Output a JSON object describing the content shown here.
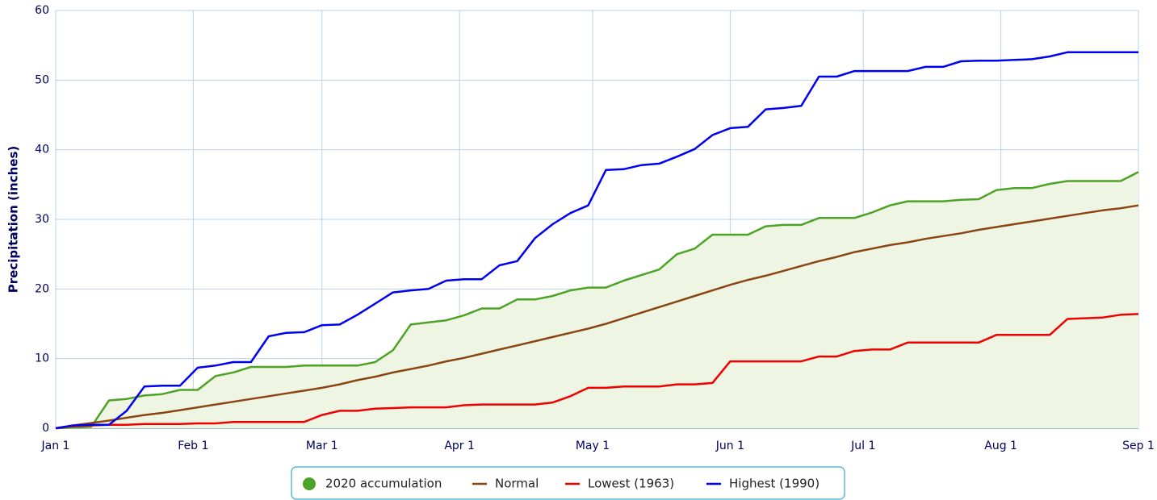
{
  "chart_data": {
    "type": "line",
    "y_label": "Precipitation (inches)",
    "x": [
      0,
      4,
      8,
      12,
      16,
      20,
      24,
      28,
      32,
      36,
      40,
      44,
      48,
      52,
      56,
      60,
      64,
      68,
      72,
      76,
      80,
      84,
      88,
      92,
      96,
      100,
      104,
      108,
      112,
      116,
      120,
      124,
      128,
      132,
      136,
      140,
      144,
      148,
      152,
      156,
      160,
      164,
      168,
      172,
      176,
      180,
      184,
      188,
      192,
      196,
      200,
      204,
      208,
      212,
      216,
      220,
      224,
      228,
      232,
      236,
      240,
      244
    ],
    "xlim": [
      0,
      244
    ],
    "xticks": [
      {
        "value": 0,
        "label": "Jan 1"
      },
      {
        "value": 31,
        "label": "Feb 1"
      },
      {
        "value": 60,
        "label": "Mar 1"
      },
      {
        "value": 91,
        "label": "Apr 1"
      },
      {
        "value": 121,
        "label": "May 1"
      },
      {
        "value": 152,
        "label": "Jun 1"
      },
      {
        "value": 182,
        "label": "Jul 1"
      },
      {
        "value": 213,
        "label": "Aug 1"
      },
      {
        "value": 244,
        "label": "Sep 1"
      }
    ],
    "ylim": [
      0,
      60
    ],
    "yticks": [
      0,
      10,
      20,
      30,
      40,
      50,
      60
    ],
    "grid": true,
    "series": [
      {
        "name": "2020 accumulation",
        "color": "#4ca325",
        "area_color": "#eef5e3",
        "marker": "circle",
        "values": [
          0,
          0.1,
          0.2,
          4.0,
          4.2,
          4.7,
          4.9,
          5.5,
          5.5,
          7.5,
          8.0,
          8.8,
          8.8,
          8.8,
          9.0,
          9.0,
          9.0,
          9.0,
          9.5,
          11.2,
          14.9,
          15.2,
          15.5,
          16.2,
          17.2,
          17.2,
          18.5,
          18.5,
          19.0,
          19.8,
          20.2,
          20.2,
          21.2,
          22.0,
          22.8,
          25.0,
          25.8,
          27.8,
          27.8,
          27.8,
          29.0,
          29.2,
          29.2,
          30.2,
          30.2,
          30.2,
          31.0,
          32.0,
          32.6,
          32.6,
          32.6,
          32.8,
          32.9,
          34.2,
          34.5,
          34.5,
          35.1,
          35.5,
          35.5,
          35.5,
          35.5,
          36.8
        ]
      },
      {
        "name": "Normal",
        "color": "#8b4513",
        "marker": "line",
        "values": [
          0,
          0.4,
          0.75,
          1.1,
          1.5,
          1.9,
          2.2,
          2.6,
          3.0,
          3.4,
          3.8,
          4.2,
          4.6,
          5.0,
          5.4,
          5.8,
          6.3,
          6.9,
          7.4,
          8.0,
          8.5,
          9.0,
          9.6,
          10.1,
          10.7,
          11.3,
          11.9,
          12.5,
          13.1,
          13.7,
          14.3,
          15.0,
          15.8,
          16.6,
          17.4,
          18.2,
          19.0,
          19.8,
          20.6,
          21.3,
          21.9,
          22.6,
          23.3,
          24.0,
          24.6,
          25.3,
          25.8,
          26.3,
          26.7,
          27.2,
          27.6,
          28.0,
          28.5,
          28.9,
          29.3,
          29.7,
          30.1,
          30.5,
          30.9,
          31.3,
          31.6,
          32.0
        ]
      },
      {
        "name": "Lowest (1963)",
        "color": "#f00000",
        "marker": "line",
        "values": [
          0,
          0.3,
          0.4,
          0.5,
          0.5,
          0.6,
          0.6,
          0.6,
          0.7,
          0.7,
          0.9,
          0.9,
          0.9,
          0.9,
          0.9,
          1.9,
          2.5,
          2.5,
          2.8,
          2.9,
          3.0,
          3.0,
          3.0,
          3.3,
          3.4,
          3.4,
          3.4,
          3.4,
          3.7,
          4.6,
          5.8,
          5.8,
          6.0,
          6.0,
          6.0,
          6.3,
          6.3,
          6.5,
          9.6,
          9.6,
          9.6,
          9.6,
          9.6,
          10.3,
          10.3,
          11.1,
          11.3,
          11.3,
          12.3,
          12.3,
          12.3,
          12.3,
          12.3,
          13.4,
          13.4,
          13.4,
          13.4,
          15.7,
          15.8,
          15.9,
          16.3,
          16.4
        ]
      },
      {
        "name": "Highest (1990)",
        "color": "#0000f0",
        "marker": "line",
        "values": [
          0,
          0.4,
          0.5,
          0.5,
          2.5,
          6.0,
          6.1,
          6.1,
          8.7,
          9.0,
          9.5,
          9.5,
          13.2,
          13.7,
          13.8,
          14.8,
          14.9,
          16.3,
          17.9,
          19.5,
          19.8,
          20.0,
          21.2,
          21.4,
          21.4,
          23.4,
          24.0,
          27.3,
          29.3,
          30.9,
          32.0,
          37.1,
          37.2,
          37.8,
          38.0,
          39.0,
          40.1,
          42.1,
          43.1,
          43.3,
          45.8,
          46.0,
          46.3,
          50.5,
          50.5,
          51.3,
          51.3,
          51.3,
          51.3,
          51.9,
          51.9,
          52.7,
          52.8,
          52.8,
          52.9,
          53.0,
          53.4,
          54.0,
          54.0,
          54.0,
          54.0,
          54.0
        ]
      }
    ]
  }
}
